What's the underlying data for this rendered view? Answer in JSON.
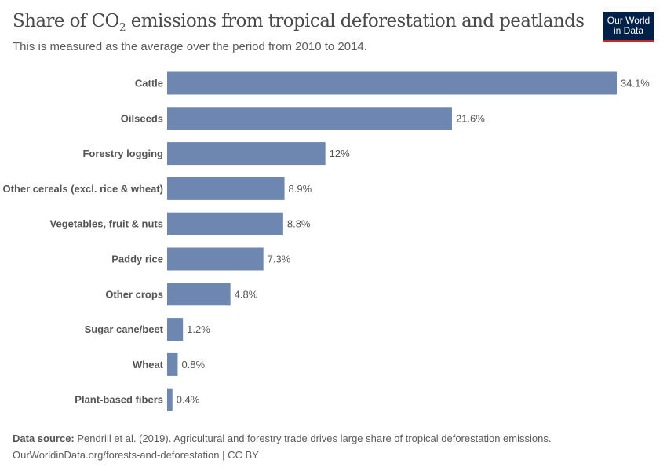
{
  "header": {
    "title_pre": "Share of CO",
    "title_sub": "2",
    "title_post": " emissions from tropical deforestation and peatlands",
    "subtitle": "This is measured as the average over the period from 2010 to 2014.",
    "logo_line1": "Our World",
    "logo_line2": "in Data"
  },
  "chart_data": {
    "type": "bar",
    "orientation": "horizontal",
    "title": "Share of CO₂ emissions from tropical deforestation and peatlands",
    "subtitle": "This is measured as the average over the period from 2010 to 2014.",
    "categories": [
      "Cattle",
      "Oilseeds",
      "Forestry logging",
      "Other cereals (excl. rice & wheat)",
      "Vegetables, fruit & nuts",
      "Paddy rice",
      "Other crops",
      "Sugar cane/beet",
      "Wheat",
      "Plant-based fibers"
    ],
    "values": [
      34.1,
      21.6,
      12,
      8.9,
      8.8,
      7.3,
      4.8,
      1.2,
      0.8,
      0.4
    ],
    "value_labels": [
      "34.1%",
      "21.6%",
      "12%",
      "8.9%",
      "8.8%",
      "7.3%",
      "4.8%",
      "1.2%",
      "0.8%",
      "0.4%"
    ],
    "unit": "%",
    "bar_color": "#6d87b0",
    "grid": false
  },
  "footer": {
    "source_label": "Data source:",
    "source_text": " Pendrill et al. (2019). Agricultural and forestry trade drives large share of tropical deforestation emissions.",
    "url_line": "OurWorldinData.org/forests-and-deforestation | CC BY"
  }
}
